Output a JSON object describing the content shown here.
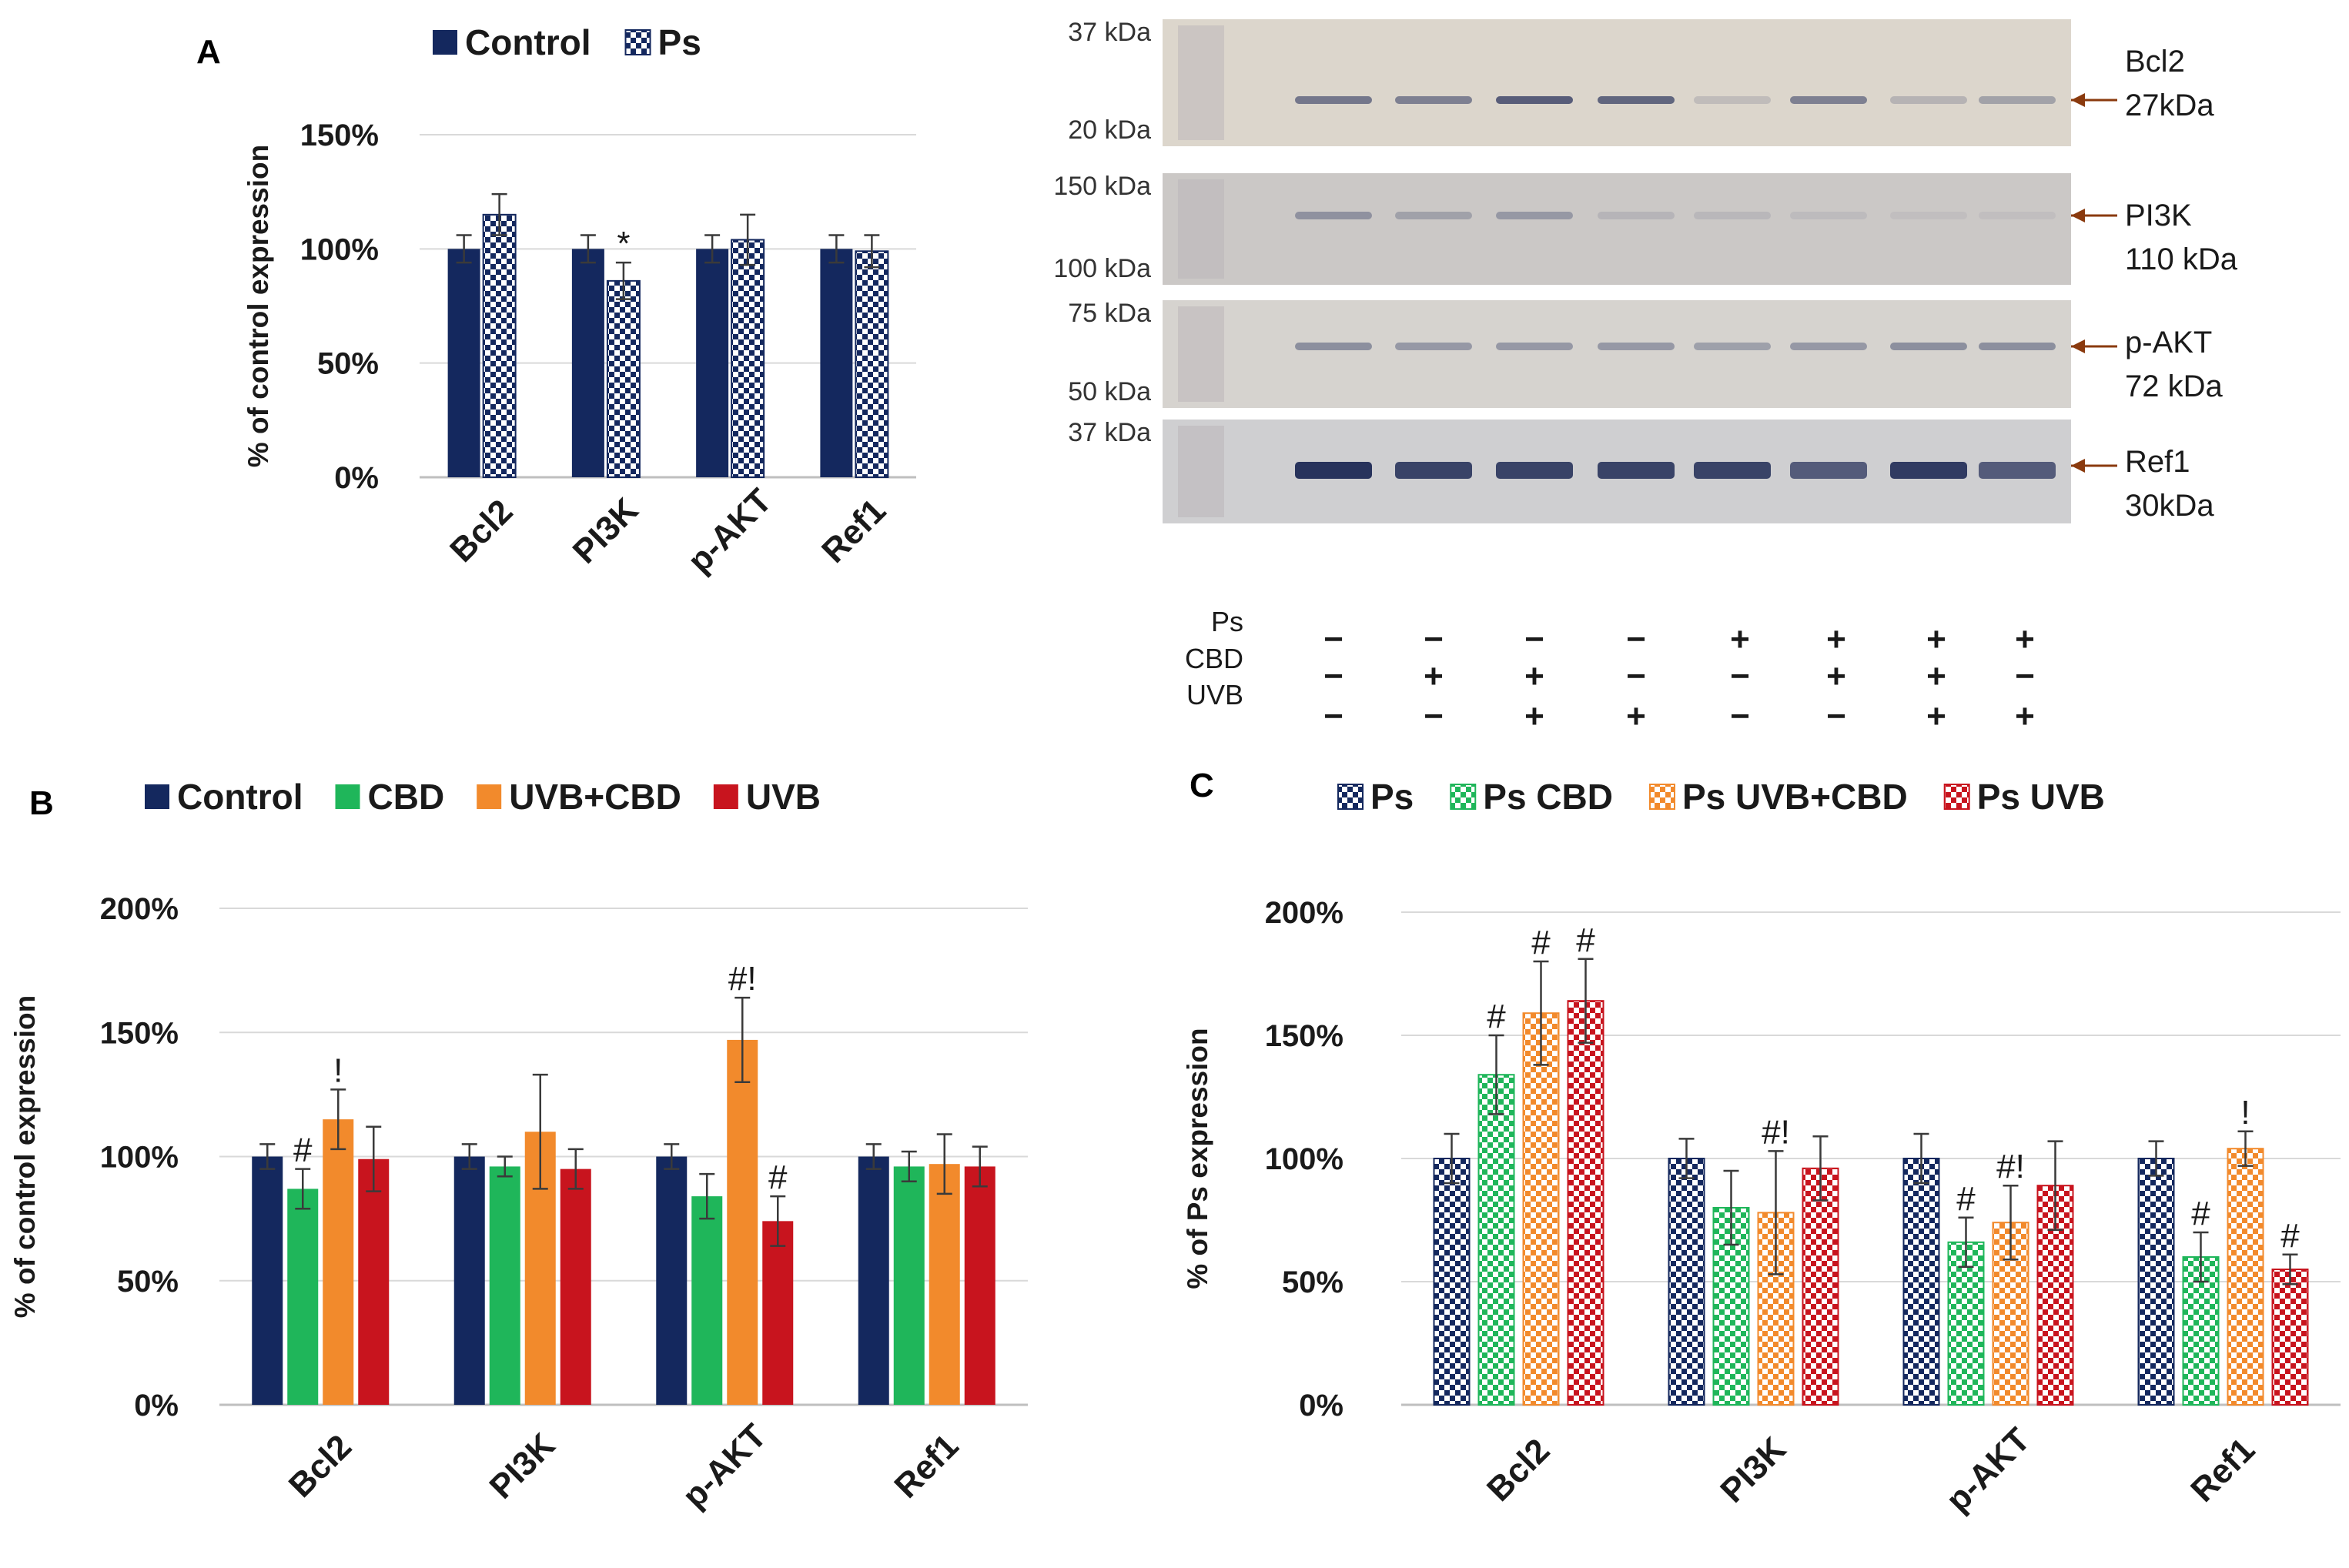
{
  "colors": {
    "control": "#14285e",
    "cbd": "#1fb65a",
    "uvbcbd": "#f28a2c",
    "uvb": "#c8141e",
    "grid": "#d9d9d9",
    "axis": "#bfbfbf",
    "text": "#1a1a1a",
    "blot_bg": "#d2cfcd",
    "arrow": "#8a3a0e"
  },
  "chart_data": [
    {
      "panel": "A",
      "type": "bar",
      "categories": [
        "Bcl2",
        "PI3K",
        "p-AKT",
        "Ref1"
      ],
      "ylabel": "% of control expression",
      "yticks": [
        "0%",
        "50%",
        "100%",
        "150%"
      ],
      "ylim": [
        0,
        150
      ],
      "legend": [
        "Control",
        "Ps"
      ],
      "legend_position": "top",
      "series": [
        {
          "name": "Control",
          "pattern": "solid",
          "color_key": "control",
          "values": [
            100,
            100,
            100,
            100
          ],
          "errors": [
            6,
            6,
            6,
            6
          ],
          "annotations": [
            "",
            "",
            "",
            ""
          ]
        },
        {
          "name": "Ps",
          "pattern": "checker",
          "color_key": "control",
          "values": [
            115,
            86,
            104,
            99
          ],
          "errors": [
            9,
            8,
            11,
            7
          ],
          "annotations": [
            "",
            "*",
            "",
            ""
          ]
        }
      ]
    },
    {
      "panel": "B",
      "type": "bar",
      "categories": [
        "Bcl2",
        "PI3K",
        "p-AKT",
        "Ref1"
      ],
      "ylabel": "% of control  expression",
      "yticks": [
        "0%",
        "50%",
        "100%",
        "150%",
        "200%"
      ],
      "ylim": [
        0,
        200
      ],
      "legend": [
        "Control",
        "CBD",
        "UVB+CBD",
        "UVB"
      ],
      "legend_position": "top",
      "series": [
        {
          "name": "Control",
          "pattern": "solid",
          "color_key": "control",
          "values": [
            100,
            100,
            100,
            100
          ],
          "errors": [
            5,
            5,
            5,
            5
          ],
          "annotations": [
            "",
            "",
            "",
            ""
          ]
        },
        {
          "name": "CBD",
          "pattern": "solid",
          "color_key": "cbd",
          "values": [
            87,
            96,
            84,
            96
          ],
          "errors": [
            8,
            4,
            9,
            6
          ],
          "annotations": [
            "#",
            "",
            "",
            ""
          ]
        },
        {
          "name": "UVB+CBD",
          "pattern": "solid",
          "color_key": "uvbcbd",
          "values": [
            115,
            110,
            147,
            97
          ],
          "errors": [
            12,
            23,
            17,
            12
          ],
          "annotations": [
            "!",
            "",
            "#!",
            ""
          ]
        },
        {
          "name": "UVB",
          "pattern": "solid",
          "color_key": "uvb",
          "values": [
            99,
            95,
            74,
            96
          ],
          "errors": [
            13,
            8,
            10,
            8
          ],
          "annotations": [
            "",
            "",
            "#",
            ""
          ]
        }
      ]
    },
    {
      "panel": "C",
      "type": "bar",
      "categories": [
        "Bcl2",
        "PI3K",
        "p-AKT",
        "Ref1"
      ],
      "ylabel": "% of Ps expression",
      "yticks": [
        "0%",
        "50%",
        "100%",
        "150%",
        "200%"
      ],
      "ylim": [
        0,
        200
      ],
      "legend": [
        "Ps",
        "Ps CBD",
        "Ps UVB+CBD",
        "Ps UVB"
      ],
      "legend_position": "top",
      "series": [
        {
          "name": "Ps",
          "pattern": "checker",
          "color_key": "control",
          "values": [
            100,
            100,
            100,
            100
          ],
          "errors": [
            10,
            8,
            10,
            7
          ],
          "annotations": [
            "",
            "",
            "",
            ""
          ]
        },
        {
          "name": "Ps CBD",
          "pattern": "checker",
          "color_key": "cbd",
          "values": [
            134,
            80,
            66,
            60
          ],
          "errors": [
            16,
            15,
            10,
            10
          ],
          "annotations": [
            "#",
            "",
            "#",
            "#"
          ]
        },
        {
          "name": "Ps UVB+CBD",
          "pattern": "checker",
          "color_key": "uvbcbd",
          "values": [
            159,
            78,
            74,
            104
          ],
          "errors": [
            21,
            25,
            15,
            7
          ],
          "annotations": [
            "#",
            "#!",
            "#!",
            "!"
          ]
        },
        {
          "name": "Ps UVB",
          "pattern": "checker",
          "color_key": "uvb",
          "values": [
            164,
            96,
            89,
            55
          ],
          "errors": [
            17,
            13,
            18,
            6
          ],
          "annotations": [
            "#",
            "",
            "",
            "#"
          ]
        }
      ]
    }
  ],
  "blot": {
    "rows": [
      {
        "markers": [
          "37 kDa",
          "20 kDa"
        ],
        "protein": "Bcl2",
        "size": "27kDa",
        "intensities": [
          0.55,
          0.5,
          0.7,
          0.65,
          0.15,
          0.5,
          0.2,
          0.3
        ]
      },
      {
        "markers": [
          "150 kDa",
          "100 kDa"
        ],
        "protein": "PI3K",
        "size": "110 kDa",
        "intensities": [
          0.35,
          0.25,
          0.3,
          0.12,
          0.1,
          0.08,
          0.06,
          0.06
        ]
      },
      {
        "markers": [
          "75 kDa",
          "50 kDa"
        ],
        "protein": "p-AKT",
        "size": "72 kDa",
        "intensities": [
          0.4,
          0.35,
          0.35,
          0.35,
          0.3,
          0.35,
          0.4,
          0.4
        ]
      },
      {
        "markers": [
          "37 kDa",
          ""
        ],
        "protein": "Ref1",
        "size": "30kDa",
        "intensities": [
          0.95,
          0.85,
          0.85,
          0.85,
          0.85,
          0.7,
          0.9,
          0.7
        ]
      }
    ],
    "conditions": [
      {
        "label": "Ps",
        "signs": [
          "−",
          "−",
          "−",
          "−",
          "+",
          "+",
          "+",
          "+"
        ]
      },
      {
        "label": "CBD",
        "signs": [
          "−",
          "+",
          "+",
          "−",
          "−",
          "+",
          "+",
          "−"
        ]
      },
      {
        "label": "UVB",
        "signs": [
          "−",
          "−",
          "+",
          "+",
          "−",
          "−",
          "+",
          "+"
        ]
      }
    ]
  }
}
